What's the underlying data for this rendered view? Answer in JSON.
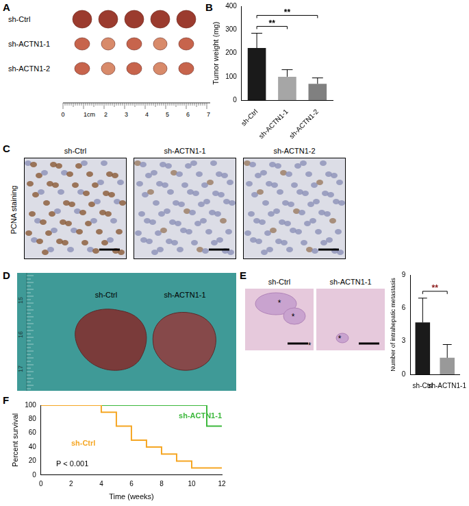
{
  "figure": {
    "A": {
      "label": "A",
      "rows": [
        "sh-Ctrl",
        "sh-ACTN1-1",
        "sh-ACTN1-2"
      ],
      "ruler": [
        "0",
        "1cm",
        "2",
        "3",
        "4",
        "5",
        "6",
        "7"
      ]
    },
    "C": {
      "label": "C",
      "side_label": "PCNA staining",
      "titles": [
        "sh-Ctrl",
        "sh-ACTN1-1",
        "sh-ACTN1-2"
      ]
    },
    "D": {
      "label": "D",
      "titles": [
        "sh-Ctrl",
        "sh-ACTN1-1"
      ],
      "ruler": [
        "15",
        "16",
        "17"
      ]
    },
    "E": {
      "label": "E",
      "titles": [
        "sh-Ctrl",
        "sh-ACTN1-1"
      ],
      "marker_text": "*"
    }
  },
  "chart_data": [
    {
      "panel": "B",
      "type": "bar",
      "categories": [
        "sh-Ctrl",
        "sh-ACTN1-1",
        "sh-ACTN1-2"
      ],
      "values": [
        222,
        100,
        70
      ],
      "errors": [
        63,
        30,
        25
      ],
      "colors": [
        "#1a1a1a",
        "#a6a6a6",
        "#808080"
      ],
      "ylabel": "Tumor weight (mg)",
      "ylim": [
        0,
        400
      ],
      "yticks": [
        0,
        100,
        200,
        300,
        400
      ],
      "grid": false,
      "annotations": [
        {
          "text": "**",
          "between": [
            0,
            1
          ]
        },
        {
          "text": "**",
          "between": [
            0,
            2
          ]
        }
      ]
    },
    {
      "panel": "E",
      "type": "bar",
      "categories": [
        "sh-Ctrl",
        "sh-ACTN1-1"
      ],
      "values": [
        4.7,
        1.5
      ],
      "errors": [
        2.2,
        1.2
      ],
      "colors": [
        "#1a1a1a",
        "#999999"
      ],
      "ylabel": "Number of intrahepatic metastasis",
      "ylim": [
        0,
        9
      ],
      "yticks": [
        0,
        3,
        6,
        9
      ],
      "grid": false,
      "annotations": [
        {
          "text": "**",
          "between": [
            0,
            1
          ]
        }
      ]
    },
    {
      "panel": "F",
      "type": "step",
      "x": [
        0,
        4,
        5,
        6,
        7,
        8,
        9,
        10,
        11,
        12
      ],
      "series": [
        {
          "name": "sh-Ctrl",
          "color": "#f5a623",
          "values": [
            100,
            90,
            70,
            50,
            40,
            30,
            20,
            10,
            10,
            10
          ]
        },
        {
          "name": "sh-ACTN1-1",
          "color": "#3cb83c",
          "values": [
            100,
            100,
            100,
            100,
            100,
            100,
            100,
            100,
            70,
            70
          ]
        }
      ],
      "xlabel": "Time (weeks)",
      "ylabel": "Percent survival",
      "xlim": [
        0,
        12
      ],
      "xticks": [
        0,
        2,
        4,
        6,
        8,
        10,
        12
      ],
      "ylim": [
        0,
        100
      ],
      "yticks": [
        0,
        20,
        40,
        60,
        80,
        100
      ],
      "grid": false,
      "annotations": [
        {
          "text": "P < 0.001"
        }
      ]
    }
  ]
}
